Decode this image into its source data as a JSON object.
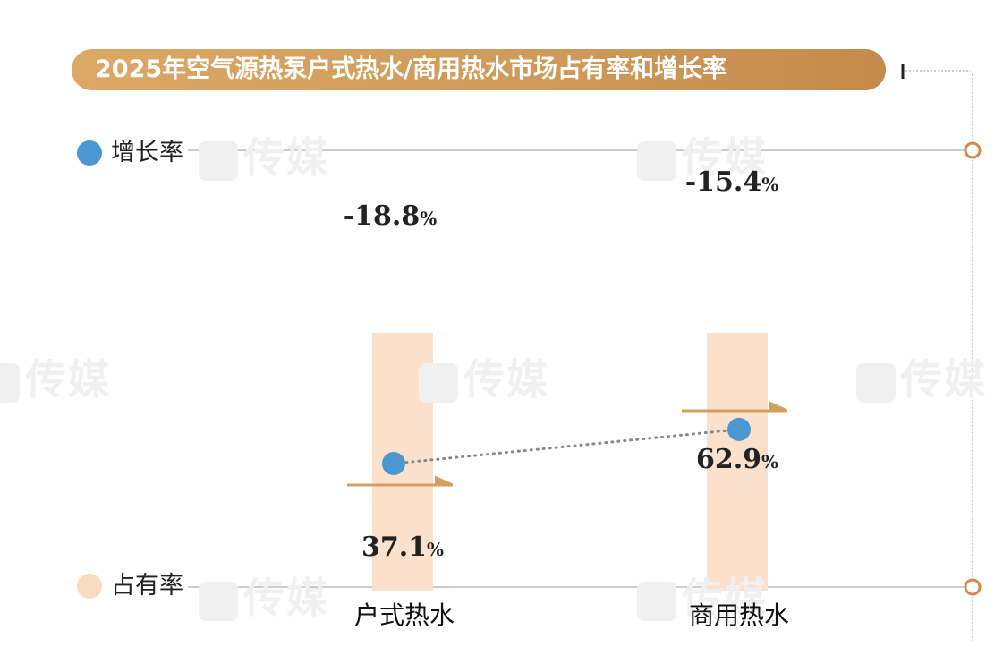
{
  "title": "2025年空气源热泵户式热水/商用热水市场占有率和增长率",
  "watermark": "传媒",
  "legend": {
    "growth": {
      "label": "增长率",
      "color": "#4a97d2"
    },
    "share": {
      "label": "占有率",
      "color": "#f7dcc0"
    }
  },
  "chart_data": {
    "type": "bar",
    "title": "2025年空气源热泵户式热水/商用热水市场占有率和增长率",
    "categories": [
      "户式热水",
      "商用热水"
    ],
    "series": [
      {
        "name": "占有率",
        "type": "bar",
        "values": [
          37.1,
          62.9
        ],
        "display": [
          "37.1",
          "62.9"
        ],
        "unit": "%",
        "color": "#fbe0cb",
        "marker_color": "#d4a060"
      },
      {
        "name": "增长率",
        "type": "line",
        "values": [
          -18.8,
          -15.4
        ],
        "display": [
          "-18.8",
          "-15.4"
        ],
        "unit": "%",
        "color": "#4a97d2",
        "line_style": "dotted"
      }
    ],
    "legend_position": "left"
  },
  "colors": {
    "axis_line": "#9a9a9a",
    "accent": "#cf9b5a",
    "ring": "#d48a4a"
  }
}
